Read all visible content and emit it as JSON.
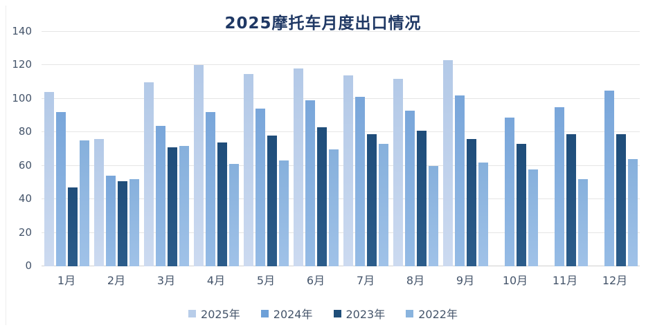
{
  "chart_data": {
    "type": "bar",
    "title": "2025摩托车月度出口情况",
    "categories": [
      "1月",
      "2月",
      "3月",
      "4月",
      "5月",
      "6月",
      "7月",
      "8月",
      "9月",
      "10月",
      "11月",
      "12月"
    ],
    "series": [
      {
        "name": "2025年",
        "legend_color": "#b8cde9",
        "fill_top": "#b3c9e7",
        "fill_bottom": "#ccdaf0",
        "values": [
          104,
          76,
          110,
          120,
          115,
          118,
          114,
          112,
          123,
          null,
          null,
          null
        ]
      },
      {
        "name": "2024年",
        "legend_color": "#6da0d8",
        "fill_top": "#79a6da",
        "fill_bottom": "#95bbe5",
        "values": [
          92,
          54,
          84,
          92,
          94,
          99,
          101,
          93,
          102,
          89,
          95,
          105
        ]
      },
      {
        "name": "2023年",
        "legend_color": "#1f4e79",
        "fill_top": "#1f4d7a",
        "fill_bottom": "#2b5c8a",
        "values": [
          47,
          51,
          71,
          74,
          78,
          83,
          79,
          81,
          76,
          73,
          79,
          79
        ]
      },
      {
        "name": "2022年",
        "legend_color": "#8ab4de",
        "fill_top": "#86b0dc",
        "fill_bottom": "#a0c2e8",
        "values": [
          75,
          52,
          72,
          61,
          63,
          70,
          73,
          60,
          62,
          58,
          52,
          64
        ]
      }
    ],
    "ylim": [
      0,
      140
    ],
    "yticks": [
      0,
      20,
      40,
      60,
      80,
      100,
      120,
      140
    ],
    "xlabel": "",
    "ylabel": "",
    "grid": true,
    "legend_position": "bottom"
  },
  "styles": {
    "title_color": "#1f3864",
    "axis_label_color": "#44546a",
    "gridline_color": "#e5e5e5",
    "baseline_color": "#cfcfcf",
    "background": "#ffffff"
  }
}
